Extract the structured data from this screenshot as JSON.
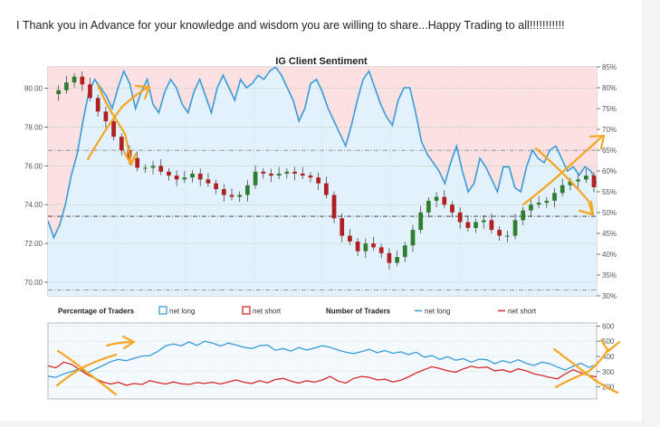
{
  "post": {
    "text": "I Thank you in Advance for your knowledge and wisdom you are willing to share...Happy Trading to all!!!!!!!!!!!"
  },
  "colors": {
    "net_long": "#3a9bd9",
    "net_short": "#d62828",
    "long_fill": "#e2f1fb",
    "short_fill": "#fbe1e1",
    "annotation": "#f5a623",
    "candle_up": "#2f7d2f",
    "candle_down": "#b02020"
  },
  "chart_data": [
    {
      "type": "line",
      "title": "IG Client Sentiment",
      "y_left": {
        "ticks": [
          "70.00",
          "72.00",
          "74.00",
          "76.00",
          "78.00",
          "80.00"
        ],
        "range": [
          69.3,
          81.1
        ]
      },
      "y_right": {
        "ticks": [
          "30%",
          "35%",
          "40%",
          "45%",
          "50%",
          "55%",
          "60%",
          "65%",
          "70%",
          "75%",
          "80%",
          "85%"
        ],
        "range": [
          30,
          85
        ]
      },
      "grid": true,
      "reference_lines": [
        76.8,
        73.4,
        69.6
      ],
      "series": [
        {
          "name": "net long",
          "axis": "right",
          "values": [
            48,
            44,
            47,
            52,
            59,
            64,
            72,
            79,
            82,
            80,
            78,
            75,
            80,
            84,
            81,
            75,
            79,
            82,
            76,
            74,
            79,
            82,
            80,
            76,
            74,
            79,
            82,
            78,
            74,
            80,
            83,
            80,
            77,
            82,
            80,
            81,
            83,
            82,
            84,
            85,
            83,
            80,
            77,
            72,
            75,
            81,
            82,
            79,
            75,
            72,
            69,
            66,
            71,
            77,
            82,
            84,
            80,
            76,
            73,
            71,
            77,
            80,
            80,
            74,
            67,
            64,
            62,
            60,
            57,
            62,
            66,
            60,
            55,
            57,
            63,
            61,
            58,
            55,
            61,
            61,
            56,
            55,
            61,
            65,
            63,
            62,
            65,
            66,
            63,
            60,
            61,
            59,
            61,
            60,
            57
          ]
        },
        {
          "name": "price",
          "axis": "left",
          "values": [
            79.7,
            79.9,
            80.3,
            80.6,
            80.2,
            79.5,
            78.8,
            78.3,
            77.5,
            76.8,
            76.4,
            75.9,
            75.9,
            76.0,
            75.7,
            75.5,
            75.3,
            75.4,
            75.6,
            75.3,
            75.1,
            74.8,
            74.5,
            74.4,
            74.5,
            75.0,
            75.7,
            75.6,
            75.5,
            75.6,
            75.7,
            75.6,
            75.5,
            75.4,
            75.1,
            74.5,
            73.3,
            72.4,
            72.1,
            71.6,
            72.0,
            71.8,
            71.5,
            71.0,
            71.3,
            71.9,
            72.7,
            73.6,
            74.2,
            74.4,
            74.0,
            73.6,
            73.1,
            72.8,
            73.1,
            73.2,
            72.7,
            72.4,
            72.4,
            73.2,
            73.7,
            74.0,
            74.1,
            74.2,
            74.6,
            75.0,
            75.2,
            75.3,
            75.5,
            74.9
          ]
        }
      ]
    },
    {
      "type": "line",
      "title": "",
      "legend": {
        "percentage_label": "Percentage of Traders",
        "pct_long": "net long",
        "pct_short": "net short",
        "number_label": "Number of Traders",
        "num_long": "net long",
        "num_short": "net short"
      },
      "y_right": {
        "ticks": [
          "200",
          "300",
          "400",
          "500",
          "600"
        ],
        "range": [
          120,
          620
        ]
      },
      "series": [
        {
          "name": "net long",
          "values": [
            270,
            262,
            285,
            300,
            318,
            292,
            316,
            340,
            365,
            380,
            372,
            388,
            402,
            405,
            432,
            470,
            482,
            470,
            495,
            472,
            500,
            488,
            468,
            488,
            475,
            460,
            452,
            470,
            475,
            440,
            452,
            435,
            458,
            442,
            455,
            470,
            460,
            442,
            428,
            418,
            432,
            446,
            425,
            438,
            420,
            430,
            412,
            428,
            395,
            405,
            380,
            398,
            375,
            385,
            362,
            382,
            378,
            352,
            372,
            358,
            378,
            355,
            340,
            362,
            352,
            330,
            310,
            335,
            355,
            328,
            345
          ]
        },
        {
          "name": "net short",
          "values": [
            338,
            325,
            362,
            348,
            315,
            280,
            255,
            232,
            218,
            230,
            210,
            222,
            215,
            240,
            228,
            218,
            232,
            220,
            215,
            228,
            222,
            230,
            218,
            232,
            245,
            230,
            222,
            240,
            226,
            248,
            255,
            238,
            225,
            240,
            230,
            245,
            268,
            238,
            225,
            255,
            268,
            262,
            245,
            250,
            232,
            243,
            265,
            292,
            312,
            332,
            320,
            305,
            296,
            318,
            335,
            325,
            330,
            305,
            312,
            296,
            318,
            305,
            286,
            275,
            262,
            252,
            285,
            312,
            292,
            275,
            265
          ]
        }
      ]
    }
  ]
}
